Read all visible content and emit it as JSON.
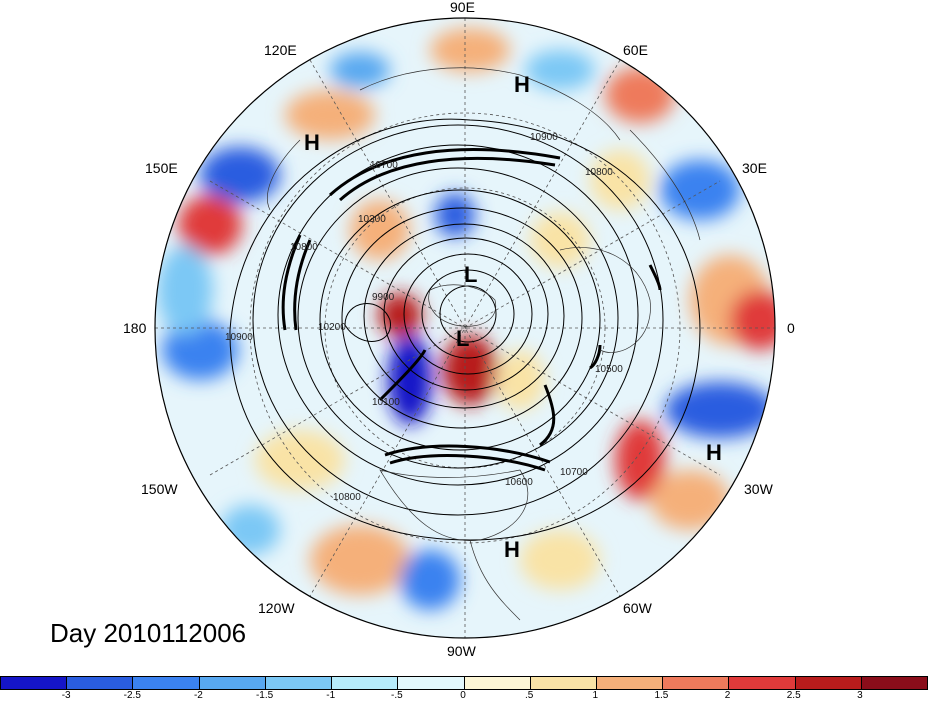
{
  "title": "Day 2010112006",
  "longitude_labels": {
    "n90E": "90E",
    "n60E": "60E",
    "n30E": "30E",
    "n0": "0",
    "n30W": "30W",
    "n60W": "60W",
    "n90W": "90W",
    "n120W": "120W",
    "n150W": "150W",
    "n180": "180",
    "n150E": "150E",
    "n120E": "120E"
  },
  "pressure_centers": [
    {
      "label": "H",
      "name": "high-marker"
    },
    {
      "label": "H",
      "name": "high-marker"
    },
    {
      "label": "H",
      "name": "high-marker"
    },
    {
      "label": "H",
      "name": "high-marker"
    },
    {
      "label": "L",
      "name": "low-marker"
    },
    {
      "label": "L",
      "name": "low-marker"
    }
  ],
  "contour_labels": [
    "10900",
    "10800",
    "10700",
    "10300",
    "10800",
    "10200",
    "10900",
    "10100",
    "10500",
    "10600",
    "10700",
    "10800",
    "9900"
  ],
  "colorbar": {
    "ticks": [
      "-3",
      "-2.5",
      "-2",
      "-1.5",
      "-1",
      "-.5",
      "0",
      ".5",
      "1",
      "1.5",
      "2",
      "2.5",
      "3"
    ],
    "colors": [
      "#1515c8",
      "#2a5de0",
      "#3b82f0",
      "#58a8f0",
      "#7cc8f5",
      "#b7ecfb",
      "#e3f8fc",
      "#fcf6d6",
      "#f9e3a6",
      "#f5b07a",
      "#ee7a5c",
      "#e03a3a",
      "#b81c1c",
      "#8a0d1a"
    ]
  }
}
